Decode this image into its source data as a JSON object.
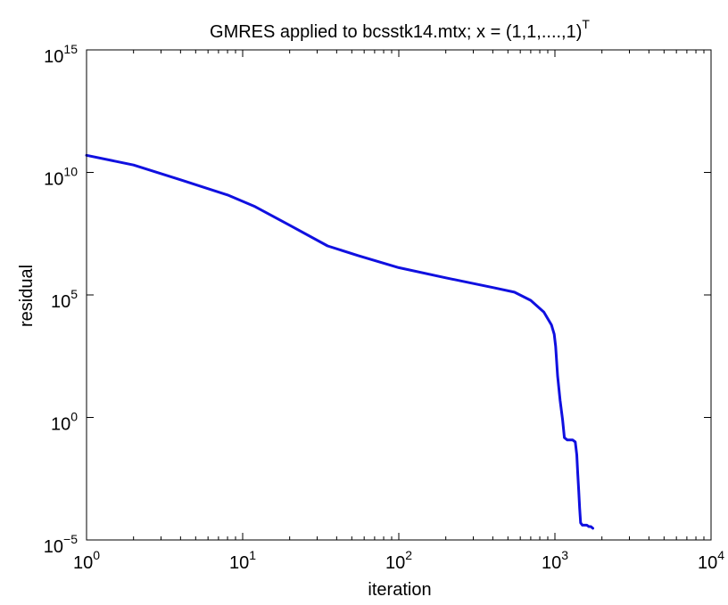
{
  "chart_data": {
    "type": "line",
    "title": {
      "prefix": "GMRES applied to bcsstk14.mtx; x = (1,1,....,1)",
      "superscript": "T"
    },
    "xlabel": "iteration",
    "ylabel": "residual",
    "xscale": "log",
    "yscale": "log",
    "xlim": [
      1,
      10000
    ],
    "ylim": [
      1e-05,
      1000000000000000
    ],
    "grid": false,
    "legend": "none",
    "xticks": [
      {
        "value": 1,
        "base": "10",
        "exp": "0"
      },
      {
        "value": 10,
        "base": "10",
        "exp": "1"
      },
      {
        "value": 100,
        "base": "10",
        "exp": "2"
      },
      {
        "value": 1000,
        "base": "10",
        "exp": "3"
      },
      {
        "value": 10000,
        "base": "10",
        "exp": "4"
      }
    ],
    "yticks": [
      {
        "value": 1e-05,
        "base": "10",
        "exp": "−5"
      },
      {
        "value": 1,
        "base": "10",
        "exp": "0"
      },
      {
        "value": 100000,
        "base": "10",
        "exp": "5"
      },
      {
        "value": 10000000000,
        "base": "10",
        "exp": "10"
      },
      {
        "value": 1000000000000000,
        "base": "10",
        "exp": "15"
      }
    ],
    "series": [
      {
        "color": "#1010e0",
        "x": [
          1,
          2,
          4,
          8,
          12,
          20,
          35,
          55,
          100,
          200,
          400,
          550,
          700,
          850,
          950,
          990,
          1010,
          1040,
          1080,
          1120,
          1150,
          1200,
          1250,
          1300,
          1350,
          1380,
          1400,
          1420,
          1440,
          1460,
          1500,
          1550,
          1600,
          1650,
          1700,
          1750
        ],
        "y": [
          50000000000,
          20000000000,
          5000000000,
          1200000000,
          400000000,
          70000000,
          10000000,
          4000000,
          1300000,
          500000,
          200000,
          130000,
          60000,
          20000,
          6000,
          2500,
          800,
          50,
          5,
          0.8,
          0.15,
          0.12,
          0.12,
          0.12,
          0.1,
          0.03,
          0.005,
          0.001,
          0.0002,
          5e-05,
          4e-05,
          4e-05,
          4e-05,
          3.5e-05,
          3.5e-05,
          3e-05
        ]
      }
    ]
  }
}
